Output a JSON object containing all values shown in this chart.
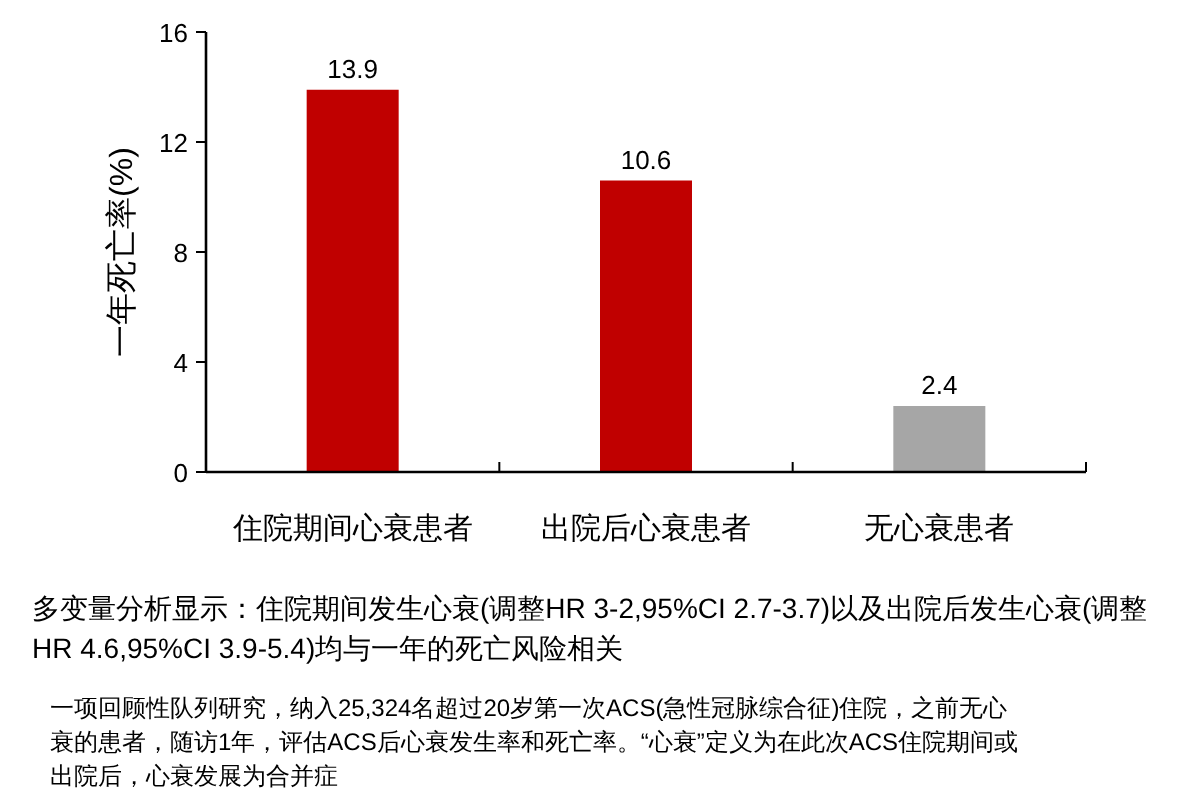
{
  "chart_data": {
    "type": "bar",
    "ylabel": "一年死亡率(%)",
    "categories": [
      "住院期间心衰患者",
      "出院后心衰患者",
      "无心衰患者"
    ],
    "values": [
      13.9,
      10.6,
      2.4
    ],
    "colors": [
      "#c00000",
      "#c00000",
      "#a6a6a6"
    ],
    "ylim": [
      0,
      16
    ],
    "yticks": [
      0,
      4,
      8,
      12,
      16
    ],
    "grid": false,
    "data_labels": true,
    "annotations": [
      "多变量分析显示：住院期间发生心衰(调整HR 3-2,95%CI 2.7-3.7)以及出院后发生心衰(调整HR 4.6,95%CI 3.9-5.4)均与一年的死亡风险相关",
      "一项回顾性队列研究，纳入25,324名超过20岁第一次ACS(急性冠脉综合征)住院，之前无心衰的患者，随访1年，评估ACS后心衰发生率和死亡率。“心衰”定义为在此次ACS住院期间或出院后，心衰发展为合并症"
    ]
  }
}
